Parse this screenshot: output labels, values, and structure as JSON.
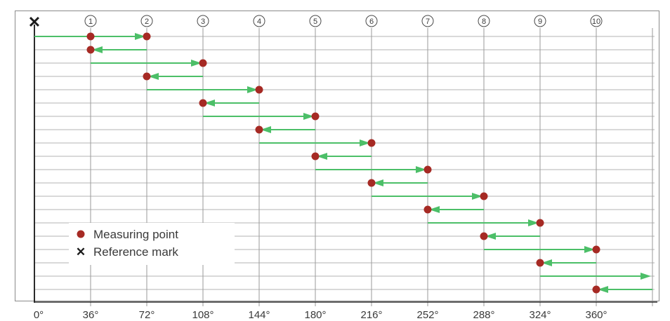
{
  "reference_mark_symbol": "✕",
  "positions": [
    "①",
    "②",
    "③",
    "④",
    "⑤",
    "⑥",
    "⑦",
    "⑧",
    "⑨",
    "⑩"
  ],
  "axis_ticks": [
    "0°",
    "36°",
    "72°",
    "108°",
    "144°",
    "180°",
    "216°",
    "252°",
    "288°",
    "324°",
    "360°"
  ],
  "legend": {
    "measuring_point": "Measuring point",
    "reference_mark": "Reference mark",
    "reference_mark_symbol": "✕"
  },
  "colors": {
    "arrow": "#4cbf68",
    "point": "#a62a24",
    "grid": "#9a9a9a",
    "axis": "#2b2b2b"
  },
  "path": {
    "unit": "degrees",
    "moves": [
      {
        "from": 0,
        "to": 72
      },
      {
        "from": 72,
        "to": 36
      },
      {
        "from": 36,
        "to": 108
      },
      {
        "from": 108,
        "to": 72
      },
      {
        "from": 72,
        "to": 144
      },
      {
        "from": 144,
        "to": 108
      },
      {
        "from": 108,
        "to": 180
      },
      {
        "from": 180,
        "to": 144
      },
      {
        "from": 144,
        "to": 216
      },
      {
        "from": 216,
        "to": 180
      },
      {
        "from": 180,
        "to": 252
      },
      {
        "from": 252,
        "to": 216
      },
      {
        "from": 216,
        "to": 288
      },
      {
        "from": 288,
        "to": 252
      },
      {
        "from": 252,
        "to": 324
      },
      {
        "from": 324,
        "to": 288
      },
      {
        "from": 288,
        "to": 360
      },
      {
        "from": 360,
        "to": 324
      },
      {
        "from": 324,
        "to": 396
      },
      {
        "from": 396,
        "to": 360
      }
    ],
    "measuring_points": [
      {
        "row": 0,
        "angle": 36
      },
      {
        "row": 0,
        "angle": 72
      },
      {
        "row": 1,
        "angle": 36
      },
      {
        "row": 2,
        "angle": 108
      },
      {
        "row": 3,
        "angle": 72
      },
      {
        "row": 4,
        "angle": 144
      },
      {
        "row": 5,
        "angle": 108
      },
      {
        "row": 6,
        "angle": 180
      },
      {
        "row": 7,
        "angle": 144
      },
      {
        "row": 8,
        "angle": 216
      },
      {
        "row": 9,
        "angle": 180
      },
      {
        "row": 10,
        "angle": 252
      },
      {
        "row": 11,
        "angle": 216
      },
      {
        "row": 12,
        "angle": 288
      },
      {
        "row": 13,
        "angle": 252
      },
      {
        "row": 14,
        "angle": 324
      },
      {
        "row": 15,
        "angle": 288
      },
      {
        "row": 16,
        "angle": 360
      },
      {
        "row": 17,
        "angle": 324
      },
      {
        "row": 19,
        "angle": 360
      }
    ]
  }
}
